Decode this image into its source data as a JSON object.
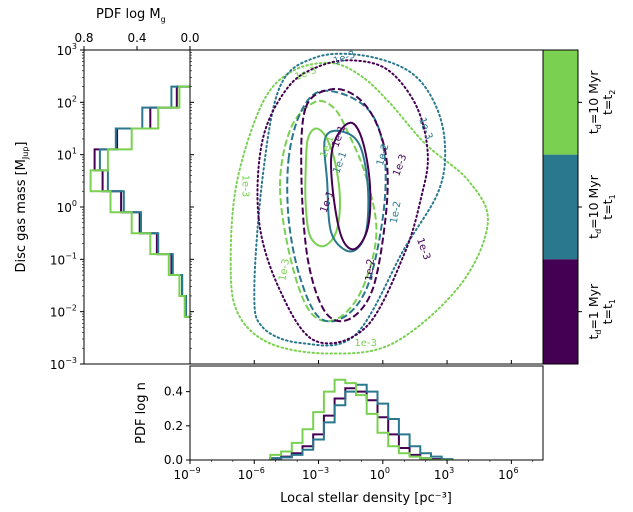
{
  "chart_data": [
    {
      "type": "contour",
      "panel": "main",
      "xlabel": "Local stellar density [pc⁻³]",
      "ylabel": "Disc gas mass [M_Jup]",
      "xscale": "log",
      "yscale": "log",
      "xlim": [
        1e-09,
        30000000.0
      ],
      "ylim": [
        0.001,
        1000
      ],
      "contour_levels": [
        "1e-1",
        "1e-2",
        "1e-3"
      ],
      "contour_label_text": [
        "1e-1",
        "1e-1",
        "1e-1",
        "1e-1",
        "1e-2",
        "1e-2",
        "1e-2",
        "1e-3",
        "1e-3",
        "1e-3",
        "1e-3",
        "1e-3",
        "1e-3",
        "1e-3",
        "1e-3"
      ],
      "linestyles": {
        "1e-1": "solid",
        "1e-2": "dashed",
        "1e-3": "dotted"
      },
      "series": [
        {
          "key": "s3",
          "color": "#7ad151",
          "contours": {
            "1e-1": [
              [
                -3.6,
                0.7
              ],
              [
                -3.5,
                1.3
              ],
              [
                -3.1,
                1.5
              ],
              [
                -2.6,
                1.3
              ],
              [
                -2.2,
                0.8
              ],
              [
                -2.0,
                0.1
              ],
              [
                -2.2,
                -0.5
              ],
              [
                -2.8,
                -0.75
              ],
              [
                -3.4,
                -0.55
              ],
              [
                -3.6,
                0.05
              ]
            ],
            "1e-2": [
              [
                -4.8,
                0.4
              ],
              [
                -4.3,
                1.5
              ],
              [
                -3.2,
                2.0
              ],
              [
                -2.3,
                1.9
              ],
              [
                -1.6,
                1.4
              ],
              [
                -0.8,
                0.6
              ],
              [
                -0.3,
                -0.5
              ],
              [
                -1.0,
                -1.6
              ],
              [
                -2.2,
                -2.15
              ],
              [
                -3.4,
                -2.0
              ],
              [
                -4.3,
                -1.0
              ]
            ],
            "1e-3": [
              [
                -7.1,
                -1.0
              ],
              [
                -6.8,
                0.5
              ],
              [
                -5.6,
                2.0
              ],
              [
                -4.2,
                2.6
              ],
              [
                -2.4,
                2.75
              ],
              [
                -1.0,
                2.5
              ],
              [
                0.3,
                2.0
              ],
              [
                2.0,
                1.2
              ],
              [
                4.0,
                0.5
              ],
              [
                4.9,
                -0.3
              ],
              [
                3.6,
                -1.5
              ],
              [
                0.5,
                -2.6
              ],
              [
                -2.5,
                -2.8
              ],
              [
                -5.3,
                -2.6
              ],
              [
                -6.8,
                -2.0
              ]
            ]
          }
        },
        {
          "key": "s2",
          "color": "#2a788e",
          "contours": {
            "1e-1": [
              [
                -2.7,
                1.3
              ],
              [
                -2.0,
                1.45
              ],
              [
                -1.1,
                1.2
              ],
              [
                -0.7,
                0.4
              ],
              [
                -0.8,
                -0.5
              ],
              [
                -1.5,
                -0.85
              ],
              [
                -2.4,
                -0.5
              ],
              [
                -2.6,
                0.5
              ]
            ],
            "1e-2": [
              [
                -4.4,
                0.9
              ],
              [
                -3.9,
                1.75
              ],
              [
                -3.0,
                2.2
              ],
              [
                -1.5,
                2.1
              ],
              [
                -0.4,
                1.7
              ],
              [
                0.1,
                0.9
              ],
              [
                0.0,
                -0.2
              ],
              [
                -0.7,
                -1.5
              ],
              [
                -1.8,
                -2.1
              ],
              [
                -3.0,
                -2.1
              ],
              [
                -3.9,
                -1.3
              ],
              [
                -4.4,
                -0.2
              ]
            ],
            "1e-3": [
              [
                -6.0,
                -1.6
              ],
              [
                -5.6,
                0.6
              ],
              [
                -4.8,
                2.3
              ],
              [
                -3.2,
                2.85
              ],
              [
                -1.0,
                2.9
              ],
              [
                1.2,
                2.6
              ],
              [
                2.4,
                2.0
              ],
              [
                2.9,
                1.2
              ],
              [
                2.6,
                0.3
              ],
              [
                1.0,
                -0.8
              ],
              [
                -1.3,
                -2.45
              ],
              [
                -3.8,
                -2.6
              ],
              [
                -5.6,
                -2.3
              ]
            ]
          }
        },
        {
          "key": "s1",
          "color": "#440154",
          "contours": {
            "1e-1": [
              [
                -2.0,
                1.45
              ],
              [
                -1.4,
                1.6
              ],
              [
                -0.9,
                1.2
              ],
              [
                -0.6,
                0.4
              ],
              [
                -0.7,
                -0.4
              ],
              [
                -1.3,
                -0.8
              ],
              [
                -1.9,
                -0.6
              ],
              [
                -2.3,
                0.2
              ],
              [
                -2.4,
                1.0
              ]
            ],
            "1e-2": [
              [
                -3.6,
                1.9
              ],
              [
                -2.4,
                2.25
              ],
              [
                -1.2,
                2.1
              ],
              [
                -0.3,
                1.6
              ],
              [
                0.2,
                0.8
              ],
              [
                0.1,
                -0.3
              ],
              [
                -0.5,
                -1.6
              ],
              [
                -1.6,
                -2.15
              ],
              [
                -2.7,
                -2.0
              ],
              [
                -3.5,
                -1.0
              ],
              [
                -3.8,
                0.6
              ]
            ],
            "1e-3": [
              [
                -5.8,
                -0.2
              ],
              [
                -5.6,
                1.3
              ],
              [
                -4.4,
                2.3
              ],
              [
                -2.9,
                2.7
              ],
              [
                -1.3,
                2.8
              ],
              [
                0.3,
                2.6
              ],
              [
                1.6,
                1.9
              ],
              [
                2.1,
                1.0
              ],
              [
                1.8,
                0.2
              ],
              [
                1.0,
                -0.9
              ],
              [
                -0.8,
                -2.3
              ],
              [
                -3.2,
                -2.55
              ],
              [
                -4.9,
                -1.5
              ]
            ]
          }
        }
      ]
    },
    {
      "type": "step",
      "panel": "left",
      "xlabel": "PDF log M_g",
      "orientation": "horizontal",
      "xlim": [
        0.8,
        0.0
      ],
      "xticks": [
        "0.8",
        "0.4",
        "0.0"
      ],
      "y_log10_Mg": [
        -1.9,
        -1.5,
        -1.1,
        -0.7,
        -0.3,
        0.1,
        0.5,
        0.9,
        1.3,
        1.7,
        2.1
      ],
      "series": [
        {
          "key": "s1",
          "color": "#440154",
          "values": [
            0.03,
            0.06,
            0.14,
            0.25,
            0.38,
            0.52,
            0.66,
            0.72,
            0.55,
            0.3,
            0.1
          ]
        },
        {
          "key": "s2",
          "color": "#2a788e",
          "values": [
            0.03,
            0.06,
            0.13,
            0.24,
            0.37,
            0.5,
            0.62,
            0.68,
            0.56,
            0.36,
            0.14
          ]
        },
        {
          "key": "s3",
          "color": "#7ad151",
          "values": [
            0.04,
            0.08,
            0.16,
            0.3,
            0.44,
            0.6,
            0.75,
            0.62,
            0.44,
            0.24,
            0.08
          ]
        }
      ]
    },
    {
      "type": "step",
      "panel": "bottom",
      "ylabel": "PDF log n",
      "xscale": "log",
      "xlim": [
        1e-09,
        30000000.0
      ],
      "ylim": [
        0.0,
        0.55
      ],
      "yticks": [
        "0.0",
        "0.2",
        "0.4"
      ],
      "x_log10_n": [
        -5.0,
        -4.5,
        -4.0,
        -3.5,
        -3.0,
        -2.5,
        -2.0,
        -1.5,
        -1.0,
        -0.5,
        0.0,
        0.5,
        1.0,
        1.5,
        2.0,
        2.5,
        3.0
      ],
      "series": [
        {
          "key": "s1",
          "color": "#440154",
          "values": [
            0.01,
            0.02,
            0.04,
            0.08,
            0.15,
            0.26,
            0.36,
            0.42,
            0.4,
            0.35,
            0.25,
            0.15,
            0.07,
            0.03,
            0.01,
            0.005,
            0.0
          ]
        },
        {
          "key": "s2",
          "color": "#2a788e",
          "values": [
            0.01,
            0.015,
            0.03,
            0.06,
            0.12,
            0.22,
            0.32,
            0.4,
            0.44,
            0.4,
            0.33,
            0.24,
            0.15,
            0.08,
            0.04,
            0.02,
            0.005
          ]
        },
        {
          "key": "s3",
          "color": "#7ad151",
          "values": [
            0.03,
            0.05,
            0.1,
            0.18,
            0.28,
            0.4,
            0.47,
            0.45,
            0.38,
            0.27,
            0.16,
            0.08,
            0.04,
            0.02,
            0.01,
            0.0,
            0.0
          ]
        }
      ]
    },
    {
      "type": "colorbar",
      "panel": "colorbar",
      "entries": [
        {
          "key": "s3",
          "color": "#7ad151",
          "line1": "t",
          "sub1": "d",
          "line1b": "=10 Myr",
          "line2": "t=t",
          "sub2": "2"
        },
        {
          "key": "s2",
          "color": "#2a788e",
          "line1": "t",
          "sub1": "d",
          "line1b": "=10 Myr",
          "line2": "t=t",
          "sub2": "1"
        },
        {
          "key": "s1",
          "color": "#440154",
          "line1": "t",
          "sub1": "d",
          "line1b": "=1 Myr",
          "line2": "t=t",
          "sub2": "1"
        }
      ]
    }
  ],
  "labels": {
    "xlabel": "Local stellar density [pc⁻³]",
    "ylabel_main": "Disc gas mass [M",
    "ylabel_main_sub": "Jup",
    "ylabel_main_end": "]",
    "top_label": "PDF log M",
    "top_label_sub": "g",
    "bottom_ylabel": "PDF log n"
  },
  "axes": {
    "mass_ticks": [
      {
        "base": "10",
        "exp": "3"
      },
      {
        "base": "10",
        "exp": "2"
      },
      {
        "base": "10",
        "exp": "1"
      },
      {
        "base": "10",
        "exp": "0"
      },
      {
        "base": "10",
        "exp": "−1"
      },
      {
        "base": "10",
        "exp": "−2"
      },
      {
        "base": "10",
        "exp": "−3"
      }
    ],
    "density_ticks": [
      {
        "base": "10",
        "exp": "−9"
      },
      {
        "base": "10",
        "exp": "−6"
      },
      {
        "base": "10",
        "exp": "−3"
      },
      {
        "base": "10",
        "exp": "0"
      },
      {
        "base": "10",
        "exp": "3"
      },
      {
        "base": "10",
        "exp": "6"
      }
    ],
    "top_ticks": [
      "0.8",
      "0.4",
      "0.0"
    ],
    "pdfn_ticks": [
      "0.0",
      "0.2",
      "0.4"
    ]
  }
}
